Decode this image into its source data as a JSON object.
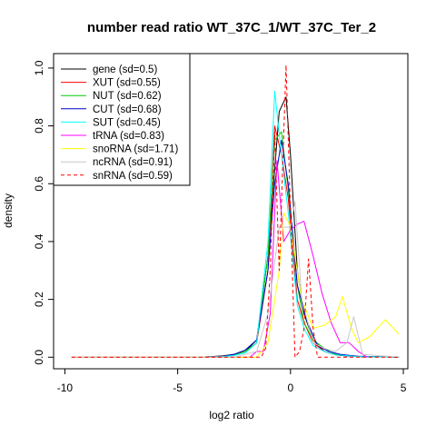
{
  "chart_data": {
    "type": "line",
    "title": "number read ratio WT_37C_1/WT_37C_Ter_2",
    "xlabel": "log2 ratio",
    "ylabel": "density",
    "xlim": [
      -10.5,
      5.2
    ],
    "ylim": [
      -0.04,
      1.05
    ],
    "xticks": [
      -10,
      -5,
      0,
      5
    ],
    "yticks": [
      0.0,
      0.2,
      0.4,
      0.6,
      0.8,
      1.0
    ],
    "ytick_labels": [
      "0.0",
      "0.2",
      "0.4",
      "0.6",
      "0.8",
      "1.0"
    ],
    "grid": false,
    "legend_position": "top-left",
    "series": [
      {
        "name": "gene (sd=0.5)",
        "color": "#000000",
        "dash": false,
        "x": [
          -9.7,
          -4.0,
          -3.5,
          -3.0,
          -2.5,
          -2.0,
          -1.5,
          -1.0,
          -0.5,
          -0.2,
          0.0,
          0.3,
          0.6,
          1.0,
          1.5,
          2.0,
          2.5,
          3.0,
          4.0,
          4.8
        ],
        "y": [
          0,
          0,
          0.002,
          0.005,
          0.01,
          0.02,
          0.06,
          0.35,
          0.85,
          0.9,
          0.7,
          0.3,
          0.15,
          0.06,
          0.02,
          0.008,
          0.004,
          0.002,
          0.001,
          0
        ]
      },
      {
        "name": "XUT (sd=0.55)",
        "color": "#ff0000",
        "dash": false,
        "x": [
          -9.7,
          -4.0,
          -3.0,
          -2.5,
          -2.0,
          -1.5,
          -1.0,
          -0.7,
          -0.4,
          -0.1,
          0.3,
          0.6,
          1.0,
          1.5,
          2.0,
          3.0,
          4.8
        ],
        "y": [
          0,
          0,
          0.003,
          0.008,
          0.02,
          0.05,
          0.3,
          0.8,
          0.7,
          0.55,
          0.2,
          0.12,
          0.05,
          0.02,
          0.008,
          0.002,
          0
        ]
      },
      {
        "name": "NUT (sd=0.62)",
        "color": "#00cc00",
        "dash": false,
        "x": [
          -9.7,
          -4.0,
          -3.0,
          -2.5,
          -2.0,
          -1.5,
          -1.0,
          -0.7,
          -0.4,
          -0.1,
          0.3,
          0.6,
          1.0,
          1.5,
          2.0,
          3.0,
          4.8
        ],
        "y": [
          0,
          0,
          0.003,
          0.008,
          0.02,
          0.05,
          0.35,
          0.75,
          0.78,
          0.58,
          0.25,
          0.12,
          0.06,
          0.03,
          0.01,
          0.003,
          0
        ]
      },
      {
        "name": "CUT (sd=0.68)",
        "color": "#0000cc",
        "dash": false,
        "x": [
          -9.7,
          -4.0,
          -3.0,
          -2.5,
          -2.0,
          -1.5,
          -1.0,
          -0.7,
          -0.4,
          -0.1,
          0.3,
          0.7,
          1.2,
          1.7,
          2.2,
          3.0,
          4.8
        ],
        "y": [
          0,
          0,
          0.003,
          0.01,
          0.025,
          0.06,
          0.3,
          0.6,
          0.75,
          0.6,
          0.25,
          0.13,
          0.04,
          0.02,
          0.01,
          0.003,
          0
        ]
      },
      {
        "name": "SUT (sd=0.45)",
        "color": "#00ffff",
        "dash": false,
        "x": [
          -9.7,
          -4.0,
          -3.0,
          -2.5,
          -2.0,
          -1.5,
          -1.0,
          -0.7,
          -0.4,
          -0.1,
          0.3,
          0.6,
          1.0,
          1.5,
          2.0,
          3.0,
          4.8
        ],
        "y": [
          0,
          0,
          0.002,
          0.006,
          0.015,
          0.05,
          0.4,
          0.92,
          0.7,
          0.5,
          0.18,
          0.1,
          0.04,
          0.02,
          0.008,
          0.002,
          0
        ]
      },
      {
        "name": "tRNA (sd=0.83)",
        "color": "#ff00ff",
        "dash": false,
        "x": [
          -9.7,
          -1.8,
          -1.5,
          -1.2,
          -0.9,
          -0.6,
          -0.3,
          0.0,
          0.3,
          0.6,
          1.0,
          1.4,
          1.8,
          2.2,
          2.6,
          3.0,
          3.4
        ],
        "y": [
          0,
          0,
          0.02,
          0.02,
          0.15,
          0.68,
          0.4,
          0.44,
          0.46,
          0.47,
          0.35,
          0.22,
          0.12,
          0.05,
          0.05,
          0.02,
          0
        ]
      },
      {
        "name": "snoRNA (sd=1.71)",
        "color": "#ffff00",
        "dash": false,
        "x": [
          -9.7,
          -1.5,
          -1.0,
          -0.5,
          -0.3,
          0.0,
          0.5,
          1.0,
          1.5,
          2.0,
          2.3,
          2.7,
          3.0,
          3.5,
          4.2,
          4.8
        ],
        "y": [
          0,
          0,
          0.05,
          0.3,
          0.5,
          0.45,
          0.2,
          0.1,
          0.11,
          0.14,
          0.21,
          0.1,
          0.05,
          0.07,
          0.13,
          0.08
        ]
      },
      {
        "name": "ncRNA (sd=0.91)",
        "color": "#c8c8c8",
        "dash": false,
        "x": [
          -9.7,
          -2.5,
          -1.5,
          -1.0,
          -0.5,
          0.0,
          0.2,
          0.5,
          1.0,
          1.5,
          2.0,
          2.5,
          2.8,
          3.2,
          4.8
        ],
        "y": [
          0,
          0,
          0.02,
          0.15,
          0.45,
          0.45,
          0.54,
          0.2,
          0.05,
          0.03,
          0.02,
          0.05,
          0.14,
          0.01,
          0
        ]
      },
      {
        "name": "snRNA (sd=0.59)",
        "color": "#ff0000",
        "dash": true,
        "x": [
          -9.7,
          -1.3,
          -1.1,
          -0.9,
          -0.7,
          -0.5,
          -0.2,
          0.0,
          0.2,
          0.4,
          0.6,
          0.8,
          1.0,
          1.2,
          4.8
        ],
        "y": [
          0,
          0,
          0.03,
          0.3,
          0.78,
          0.3,
          1.01,
          0.5,
          0.0,
          0.02,
          0.1,
          0.34,
          0.1,
          0.0,
          0
        ]
      }
    ]
  }
}
